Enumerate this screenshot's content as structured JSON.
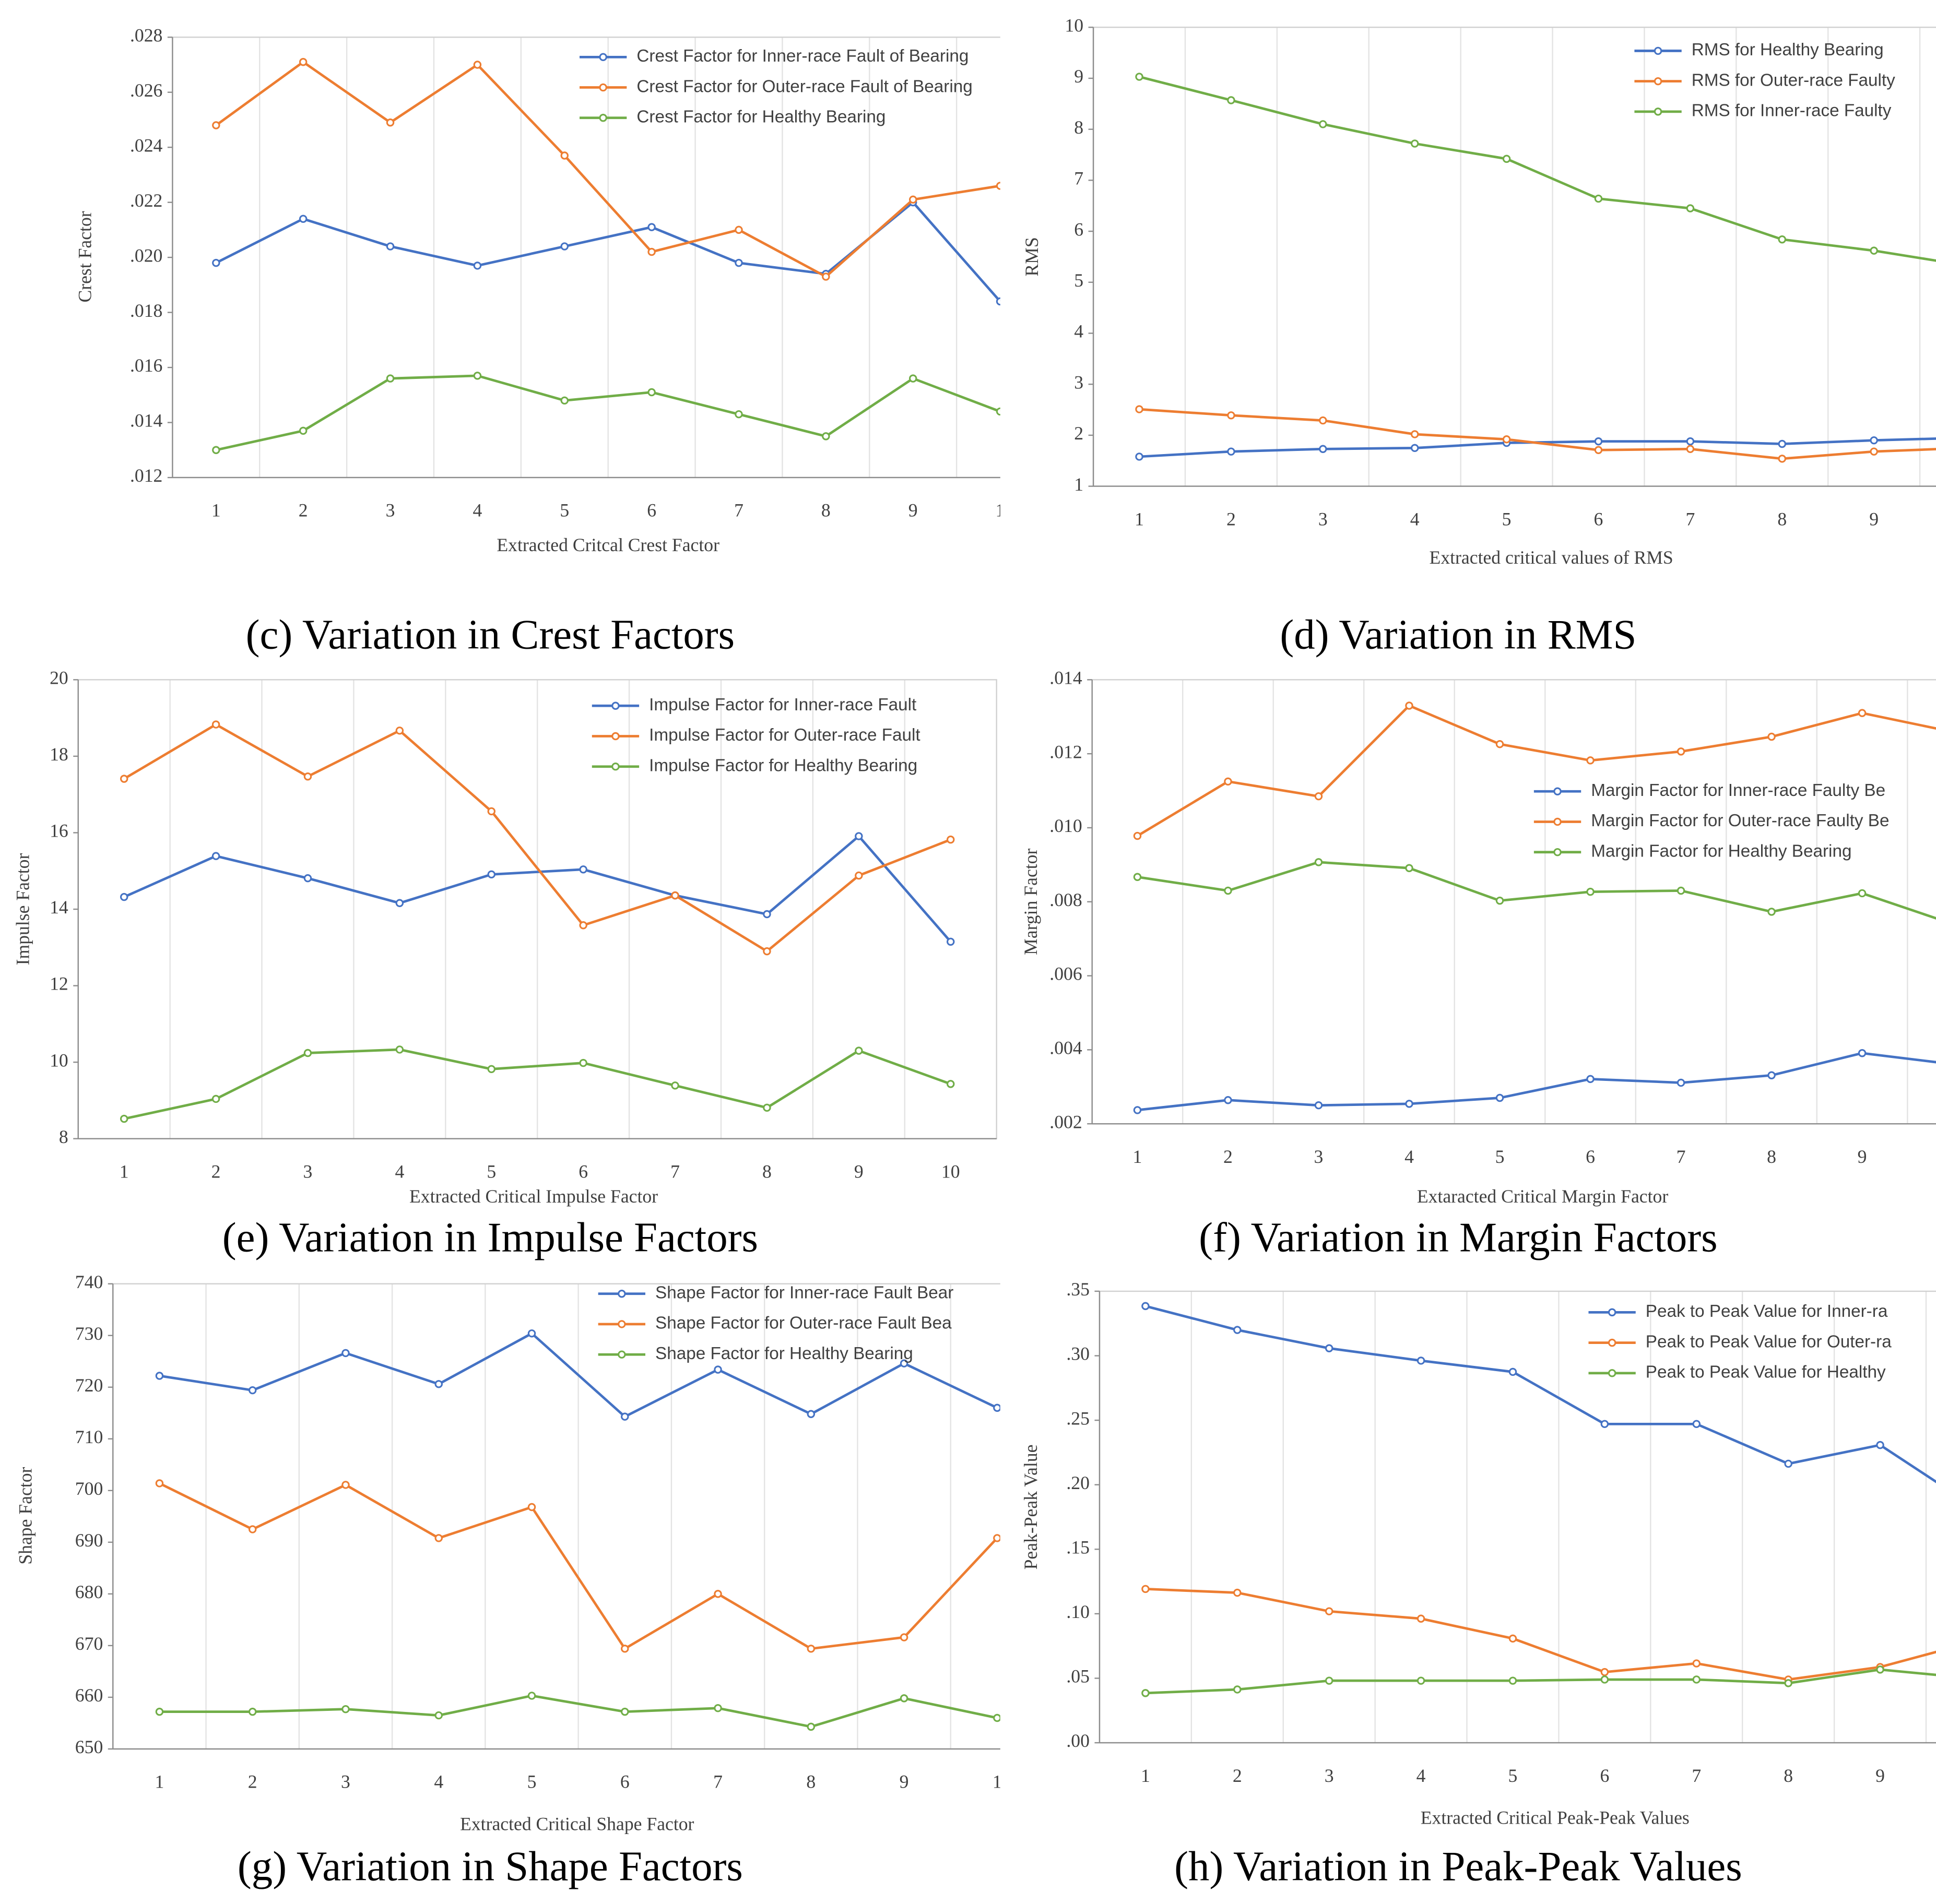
{
  "chart_data": [
    {
      "type": "line",
      "title": "(c) Variation in Crest Factors",
      "xlabel": "Extracted Critcal Crest Factor",
      "ylabel": "Crest Factor",
      "categories": [
        "1",
        "2",
        "3",
        "4",
        "5",
        "6",
        "7",
        "8",
        "9",
        "1"
      ],
      "ylim": [
        0.012,
        0.028
      ],
      "yticks": [
        {
          "value": 0.012,
          "label": ".012"
        },
        {
          "value": 0.014,
          "label": ".014"
        },
        {
          "value": 0.016,
          "label": ".016"
        },
        {
          "value": 0.018,
          "label": ".018"
        },
        {
          "value": 0.02,
          "label": ".020"
        },
        {
          "value": 0.022,
          "label": ".022"
        },
        {
          "value": 0.024,
          "label": ".024"
        },
        {
          "value": 0.026,
          "label": ".026"
        },
        {
          "value": 0.028,
          "label": ".028"
        }
      ],
      "legend": "upper right",
      "series": [
        {
          "name": "Crest Factor for Inner-race Fault of Bearing",
          "color": "#4472c4",
          "values": [
            0.0198,
            0.0214,
            0.0204,
            0.0197,
            0.0204,
            0.0211,
            0.0198,
            0.0194,
            0.022,
            0.0184
          ]
        },
        {
          "name": "Crest Factor for Outer-race Fault of Bearing",
          "color": "#ed7d31",
          "values": [
            0.0248,
            0.0271,
            0.0249,
            0.027,
            0.0237,
            0.0202,
            0.021,
            0.0193,
            0.0221,
            0.0226
          ]
        },
        {
          "name": "Crest Factor for Healthy Bearing",
          "color": "#70ad47",
          "values": [
            0.013,
            0.0137,
            0.0156,
            0.0157,
            0.0148,
            0.0151,
            0.0143,
            0.0135,
            0.0156,
            0.0144
          ]
        }
      ]
    },
    {
      "type": "line",
      "title": "(d) Variation in RMS",
      "xlabel": "Extracted critical values of RMS",
      "ylabel": "RMS",
      "categories": [
        "1",
        "2",
        "3",
        "4",
        "5",
        "6",
        "7",
        "8",
        "9",
        null
      ],
      "ylim": [
        1,
        10
      ],
      "yticks": [
        1,
        2,
        3,
        4,
        5,
        6,
        7,
        8,
        9,
        10
      ],
      "legend": "upper right",
      "series": [
        {
          "name": "RMS for Healthy Bearing",
          "color": "#4472c4",
          "values": [
            1.58,
            1.68,
            1.73,
            1.75,
            1.85,
            1.88,
            1.88,
            1.83,
            1.9,
            1.95
          ]
        },
        {
          "name": "RMS for Outer-race Faulty",
          "color": "#ed7d31",
          "values": [
            2.51,
            2.39,
            2.29,
            2.02,
            1.92,
            1.71,
            1.73,
            1.54,
            1.68,
            1.75
          ]
        },
        {
          "name": "RMS for Inner-race Faulty",
          "color": "#70ad47",
          "values": [
            9.03,
            8.57,
            8.1,
            7.72,
            7.42,
            6.64,
            6.45,
            5.84,
            5.62,
            5.33
          ]
        }
      ]
    },
    {
      "type": "line",
      "title": "(e) Variation in Impulse Factors",
      "xlabel": "Extracted Critical Impulse Factor",
      "ylabel": "Impulse Factor",
      "categories": [
        "1",
        "2",
        "3",
        "4",
        "5",
        "6",
        "7",
        "8",
        "9",
        "10"
      ],
      "ylim": [
        8,
        20
      ],
      "yticks": [
        8,
        10,
        12,
        14,
        16,
        18,
        20
      ],
      "legend": "upper right",
      "series": [
        {
          "name": "Impulse Factor for Inner-race Fault",
          "color": "#4472c4",
          "values": [
            14.32,
            15.39,
            14.81,
            14.16,
            14.91,
            15.04,
            14.36,
            13.87,
            15.91,
            13.15
          ]
        },
        {
          "name": "Impulse Factor for Outer-race Fault",
          "color": "#ed7d31",
          "values": [
            17.41,
            18.83,
            17.47,
            18.67,
            16.56,
            13.58,
            14.36,
            12.9,
            14.88,
            15.82
          ]
        },
        {
          "name": "Impulse Factor for Healthy Bearing",
          "color": "#70ad47",
          "values": [
            8.52,
            9.04,
            10.24,
            10.33,
            9.82,
            9.98,
            9.39,
            8.81,
            10.3,
            9.43
          ]
        }
      ]
    },
    {
      "type": "line",
      "title": "(f) Variation in Margin Factors",
      "xlabel": "Extaracted Critical Margin Factor",
      "ylabel": "Margin Factor",
      "categories": [
        "1",
        "2",
        "3",
        "4",
        "5",
        "6",
        "7",
        "8",
        "9",
        null
      ],
      "ylim": [
        0.002,
        0.014
      ],
      "yticks": [
        {
          "value": 0.002,
          "label": ".002"
        },
        {
          "value": 0.004,
          "label": ".004"
        },
        {
          "value": 0.006,
          "label": ".006"
        },
        {
          "value": 0.008,
          "label": ".008"
        },
        {
          "value": 0.01,
          "label": ".010"
        },
        {
          "value": 0.012,
          "label": ".012"
        },
        {
          "value": 0.014,
          "label": ".014"
        }
      ],
      "legend": "right",
      "series": [
        {
          "name": "Margin Factor for Inner-race Faulty Be",
          "color": "#4472c4",
          "values": [
            0.00237,
            0.00264,
            0.0025,
            0.00254,
            0.0027,
            0.00321,
            0.00311,
            0.00331,
            0.00391,
            0.00361
          ]
        },
        {
          "name": "Margin Factor for Outer-race Faulty Be",
          "color": "#ed7d31",
          "values": [
            0.00978,
            0.01125,
            0.01085,
            0.0133,
            0.01226,
            0.01182,
            0.01206,
            0.01246,
            0.0131,
            0.01259
          ]
        },
        {
          "name": "Margin Factor for Healthy Bearing",
          "color": "#70ad47",
          "values": [
            0.00867,
            0.0083,
            0.00907,
            0.00891,
            0.00803,
            0.00827,
            0.0083,
            0.00773,
            0.00823,
            0.0074
          ]
        }
      ]
    },
    {
      "type": "line",
      "title": "(g) Variation in Shape Factors",
      "xlabel": "Extracted Critical Shape Factor",
      "ylabel": "Shape Factor",
      "categories": [
        "1",
        "2",
        "3",
        "4",
        "5",
        "6",
        "7",
        "8",
        "9",
        "1"
      ],
      "ylim": [
        650,
        740
      ],
      "yticks": [
        650,
        660,
        670,
        680,
        690,
        700,
        710,
        720,
        730,
        740
      ],
      "legend": "upper right",
      "series": [
        {
          "name": "Shape Factor for Inner-race Fault Bear",
          "color": "#4472c4",
          "values": [
            722.2,
            719.4,
            726.6,
            720.6,
            730.4,
            714.3,
            723.4,
            714.8,
            724.6,
            716.0
          ]
        },
        {
          "name": "Shape Factor for Outer-race Fault Bea",
          "color": "#ed7d31",
          "values": [
            701.4,
            692.5,
            701.1,
            690.8,
            696.8,
            669.4,
            680.0,
            669.4,
            671.6,
            690.8
          ]
        },
        {
          "name": "Shape Factor for Healthy Bearing",
          "color": "#70ad47",
          "values": [
            657.2,
            657.2,
            657.7,
            656.5,
            660.3,
            657.2,
            657.9,
            654.3,
            659.8,
            656.0
          ]
        }
      ]
    },
    {
      "type": "line",
      "title": "(h) Variation in Peak-Peak Values",
      "xlabel": "Extracted Critical Peak-Peak Values",
      "ylabel": "Peak-Peak Value",
      "categories": [
        "1",
        "2",
        "3",
        "4",
        "5",
        "6",
        "7",
        "8",
        "9",
        null
      ],
      "ylim": [
        0,
        0.35
      ],
      "yticks": [
        {
          "value": 0,
          "label": ".00"
        },
        {
          "value": 0.05,
          "label": ".05"
        },
        {
          "value": 0.1,
          "label": ".10"
        },
        {
          "value": 0.15,
          "label": ".15"
        },
        {
          "value": 0.2,
          "label": ".20"
        },
        {
          "value": 0.25,
          "label": ".25"
        },
        {
          "value": 0.3,
          "label": ".30"
        },
        {
          "value": 0.35,
          "label": ".35"
        }
      ],
      "legend": "upper right",
      "series": [
        {
          "name": "Peak to Peak Value for Inner-ra",
          "color": "#4472c4",
          "values": [
            0.3385,
            0.32,
            0.3058,
            0.2962,
            0.2875,
            0.2471,
            0.2471,
            0.2163,
            0.2308,
            0.184
          ]
        },
        {
          "name": "Peak to Peak Value for Outer-ra",
          "color": "#ed7d31",
          "values": [
            0.1192,
            0.1163,
            0.1019,
            0.0962,
            0.0808,
            0.0548,
            0.0615,
            0.049,
            0.0587,
            0.0779
          ]
        },
        {
          "name": "Peak to Peak Value for Healthy",
          "color": "#70ad47",
          "values": [
            0.0385,
            0.0413,
            0.0481,
            0.0481,
            0.0481,
            0.049,
            0.049,
            0.0462,
            0.0567,
            0.05
          ]
        }
      ]
    }
  ]
}
